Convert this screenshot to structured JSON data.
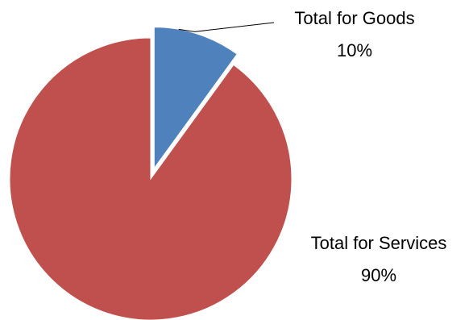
{
  "chart_data": {
    "type": "pie",
    "title": "",
    "slices": [
      {
        "label": "Total for Goods",
        "value": 10,
        "percent_label": "10%",
        "color": "#4F81BD",
        "exploded": true
      },
      {
        "label": "Total for Services",
        "value": 90,
        "percent_label": "90%",
        "color": "#C0504D",
        "exploded": false
      }
    ],
    "start_angle_deg": 0,
    "direction": "clockwise",
    "legend": "none"
  }
}
